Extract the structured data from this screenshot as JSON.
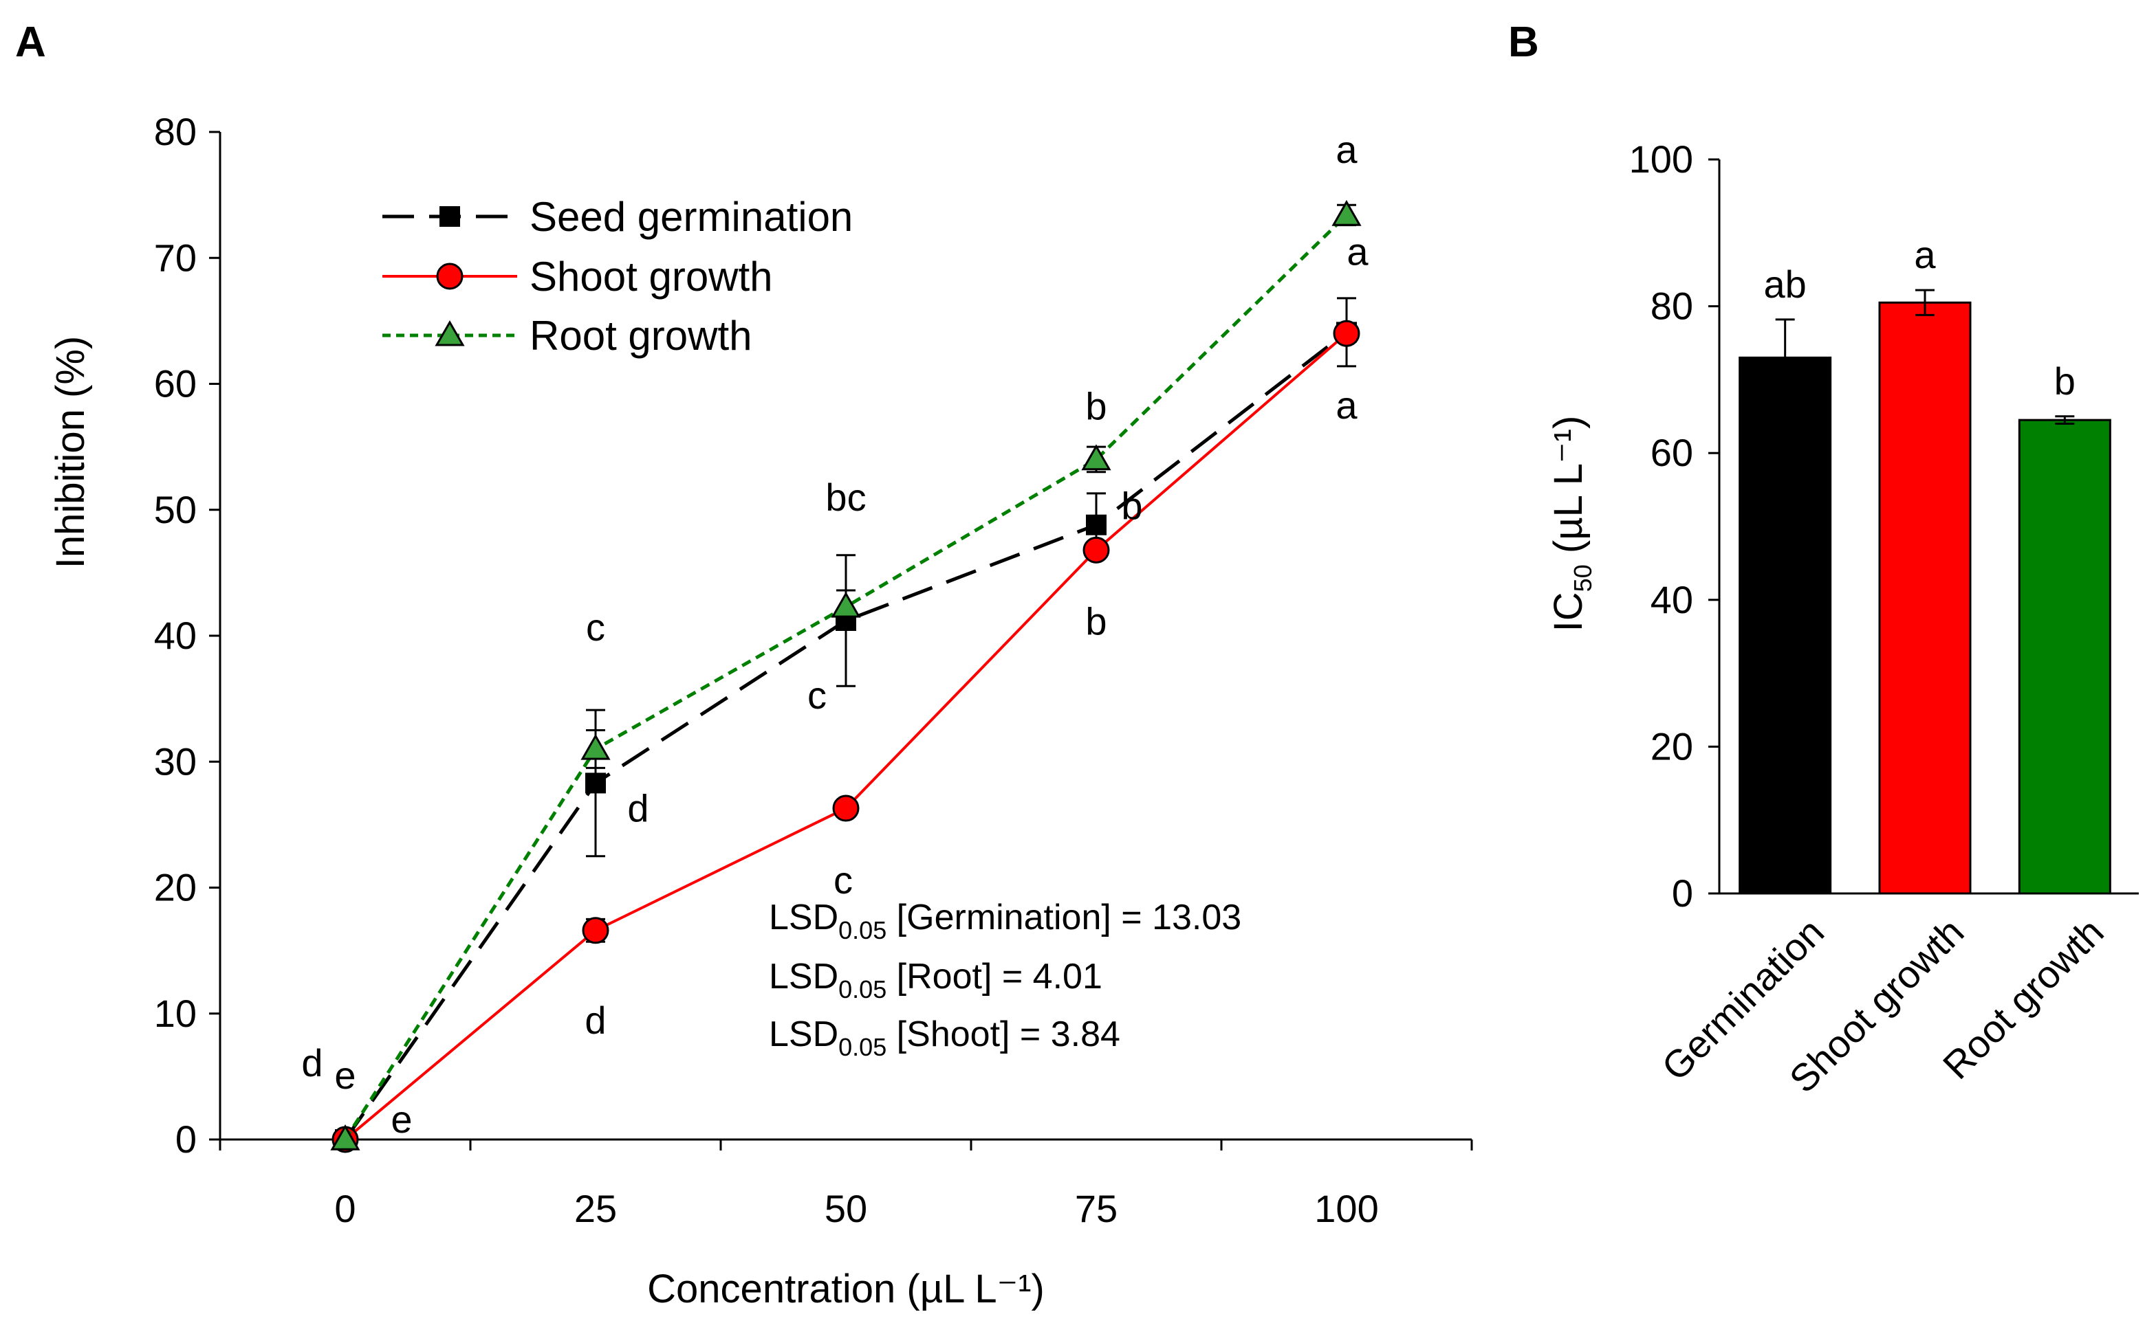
{
  "panel_a": {
    "letter": "A",
    "lsd": [
      {
        "prefix": "LSD",
        "sub": "0.05",
        "text": " [Germination] = 13.03"
      },
      {
        "prefix": "LSD",
        "sub": "0.05",
        "text": " [Root] = 4.01"
      },
      {
        "prefix": "LSD",
        "sub": "0.05",
        "text": " [Shoot] = 3.84"
      }
    ]
  },
  "panel_b": {
    "letter": "B"
  },
  "colors": {
    "germination": "#000000",
    "shoot": "#ff0000",
    "root": "#008000",
    "root_marker": "#3aa23a",
    "axis": "#000000"
  },
  "chart_data": [
    {
      "type": "line",
      "title": "",
      "xlabel": "Concentration (µL L⁻¹)",
      "ylabel": "Inhibition (%)",
      "xlim": [
        -12.5,
        112.5
      ],
      "ylim": [
        0,
        80
      ],
      "x": [
        0,
        25,
        50,
        75,
        100
      ],
      "x_tick_labels": [
        "0",
        "25",
        "50",
        "75",
        "100"
      ],
      "y_ticks": [
        0,
        10,
        20,
        30,
        40,
        50,
        60,
        70,
        80
      ],
      "y_tick_labels": [
        "0",
        "10",
        "20",
        "30",
        "40",
        "50",
        "60",
        "70",
        "80"
      ],
      "legend_position": "top-left",
      "series": [
        {
          "name": "Seed germination",
          "color": "#000000",
          "marker": "square",
          "line": "long-dash",
          "values": [
            0,
            28.3,
            41.2,
            48.8,
            64.1
          ],
          "errors": [
            0,
            5.8,
            5.2,
            2.5,
            2.7
          ],
          "letters": [
            "d",
            "d",
            "c",
            "b",
            "a"
          ]
        },
        {
          "name": "Shoot growth",
          "color": "#ff0000",
          "marker": "circle",
          "line": "solid",
          "values": [
            0,
            16.6,
            26.3,
            46.8,
            64.0
          ],
          "errors": [
            0,
            0.9,
            0.6,
            0.5,
            0.6
          ],
          "letters": [
            "e",
            "d",
            "c",
            "b",
            "a"
          ]
        },
        {
          "name": "Root growth",
          "color": "#008000",
          "marker": "triangle",
          "line": "short-dash",
          "values": [
            0,
            31.0,
            42.3,
            54.0,
            73.4
          ],
          "errors": [
            0,
            1.5,
            1.3,
            1.0,
            0.8
          ],
          "letters": [
            "e",
            "c",
            "bc",
            "b",
            "a"
          ]
        }
      ]
    },
    {
      "type": "bar",
      "title": "",
      "xlabel": "",
      "ylabel_main": "IC",
      "ylabel_sub": "50",
      "ylabel_rest": " (µL L⁻¹)",
      "ylim": [
        0,
        100
      ],
      "y_ticks": [
        0,
        20,
        40,
        60,
        80,
        100
      ],
      "y_tick_labels": [
        "0",
        "20",
        "40",
        "60",
        "80",
        "100"
      ],
      "categories": [
        "Germination",
        "Shoot growth",
        "Root growth"
      ],
      "values": [
        73.0,
        80.5,
        64.5
      ],
      "errors": [
        5.2,
        1.7,
        0.5
      ],
      "letters": [
        "ab",
        "a",
        "b"
      ],
      "colors": [
        "#000000",
        "#ff0000",
        "#008000"
      ]
    }
  ]
}
